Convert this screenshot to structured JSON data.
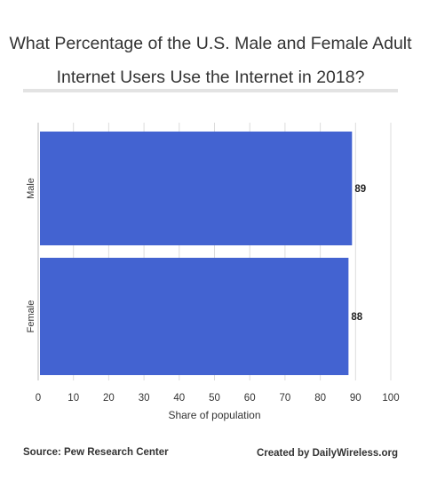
{
  "chart_data": {
    "type": "bar",
    "orientation": "horizontal",
    "title": "What Percentage of the U.S. Male and Female Adult Internet Users Use the Internet in 2018?",
    "title_lines": [
      "What Percentage of the U.S. Male and Female Adult",
      "Internet Users Use the Internet in 2018?"
    ],
    "categories": [
      "Male",
      "Female"
    ],
    "values": [
      89,
      88
    ],
    "data_labels": [
      "89",
      "88"
    ],
    "xlabel": "Share of population",
    "ylabel": "",
    "xlim": [
      0,
      100
    ],
    "x_ticks": [
      "0",
      "10",
      "20",
      "30",
      "40",
      "50",
      "60",
      "70",
      "80",
      "90",
      "100"
    ],
    "bar_color": "#4363d1",
    "grid": true
  },
  "footer": {
    "source": "Source:  Pew Research Center",
    "credit": "Created by DailyWireless.org"
  }
}
